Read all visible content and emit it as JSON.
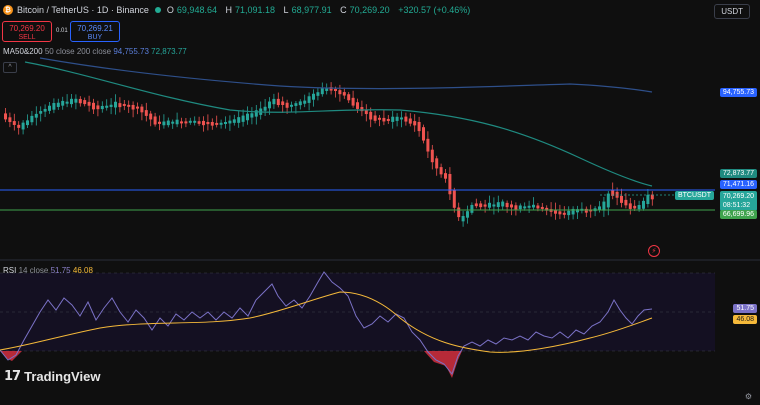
{
  "header": {
    "symbol": "Bitcoin / TetherUS · 1D · Binance",
    "coin_icon": "bitcoin-icon",
    "ohlc": [
      {
        "k": "O",
        "v": "69,948.64"
      },
      {
        "k": "H",
        "v": "71,091.18"
      },
      {
        "k": "L",
        "v": "68,977.91"
      },
      {
        "k": "C",
        "v": "70,269.20"
      }
    ],
    "change": "+320.57 (+0.46%)",
    "currency": "USDT"
  },
  "trade": {
    "sell_price": "70,269.20",
    "sell_label": "SELL",
    "spread": "0.01",
    "buy_price": "70,269.21",
    "buy_label": "BUY"
  },
  "ma": {
    "label": "MA50&200",
    "params": "50 close 200 close",
    "v1": "94,755.73",
    "v2": "72,873.77"
  },
  "rsi": {
    "label": "RSI",
    "params": "14 close",
    "v1": "51.75",
    "v2": "46.08"
  },
  "price_labels": {
    "ma200": "94,755.73",
    "ma50": "72,873.77",
    "blue_line": "71,471.16",
    "ticker": "BTCUSDT",
    "current": "70,269.20",
    "countdown": "08:51:32",
    "green_line": "66,699.96"
  },
  "rsi_labels": {
    "a": "51.75",
    "b": "46.08"
  },
  "colors": {
    "up": "#26a69a",
    "down": "#ef5350",
    "ma200": "#2e4f8a",
    "ma50": "#1f8a80",
    "rsi": "#7b72c7",
    "rsi_ma": "#f5b93a"
  },
  "logo": "TradingView",
  "icons": [
    "collapse-icon",
    "lightning-icon",
    "gear-icon",
    "tradingview-logo-icon"
  ]
}
